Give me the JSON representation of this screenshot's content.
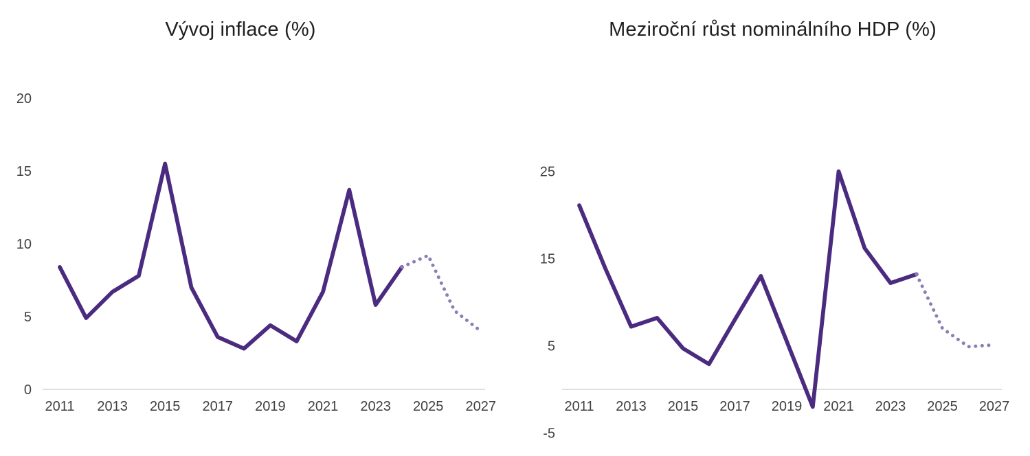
{
  "colors": {
    "actual_line": "#4B2B7F",
    "forecast_line": "#8C7DB6",
    "axis_line": "#C9C9C9",
    "tick_text": "#404040",
    "title_text": "#1F1F1F",
    "background": "#FFFFFF"
  },
  "chart_data": [
    {
      "type": "line",
      "title": "Vývoj inflace (%)",
      "xlabel": "",
      "ylabel": "",
      "xlim": [
        2011,
        2027
      ],
      "ylim": [
        0,
        20
      ],
      "grid": false,
      "legend": "none",
      "y_ticks": [
        0,
        5,
        10,
        15,
        20
      ],
      "x_ticks": [
        2011,
        2013,
        2015,
        2017,
        2019,
        2021,
        2023,
        2025,
        2027
      ],
      "series": [
        {
          "name": "actual",
          "style": "solid",
          "x": [
            2011,
            2012,
            2013,
            2014,
            2015,
            2016,
            2017,
            2018,
            2019,
            2020,
            2021,
            2022,
            2023,
            2024
          ],
          "values": [
            8.4,
            4.9,
            6.7,
            7.8,
            15.5,
            7.0,
            3.6,
            2.8,
            4.4,
            3.3,
            6.7,
            13.7,
            5.8,
            8.4
          ]
        },
        {
          "name": "forecast",
          "style": "dotted",
          "x": [
            2024,
            2025,
            2026,
            2027
          ],
          "values": [
            8.4,
            9.2,
            5.4,
            4.0
          ]
        }
      ]
    },
    {
      "type": "line",
      "title": "Meziroční růst nominálního HDP (%)",
      "xlabel": "",
      "ylabel": "",
      "xlim": [
        2011,
        2027
      ],
      "ylim": [
        -5,
        25
      ],
      "grid": false,
      "legend": "none",
      "y_ticks": [
        -5,
        5,
        15,
        25
      ],
      "x_ticks": [
        2011,
        2013,
        2015,
        2017,
        2019,
        2021,
        2023,
        2025,
        2027
      ],
      "series": [
        {
          "name": "actual",
          "style": "solid",
          "x": [
            2011,
            2012,
            2013,
            2014,
            2015,
            2016,
            2017,
            2018,
            2019,
            2020,
            2021,
            2022,
            2023,
            2024
          ],
          "values": [
            21.1,
            13.9,
            7.2,
            8.2,
            4.7,
            2.9,
            8.0,
            13.0,
            5.5,
            -2.0,
            25.0,
            16.2,
            12.2,
            13.2
          ]
        },
        {
          "name": "forecast",
          "style": "dotted",
          "x": [
            2024,
            2025,
            2026,
            2027
          ],
          "values": [
            13.2,
            7.0,
            4.9,
            5.1
          ]
        }
      ]
    }
  ]
}
